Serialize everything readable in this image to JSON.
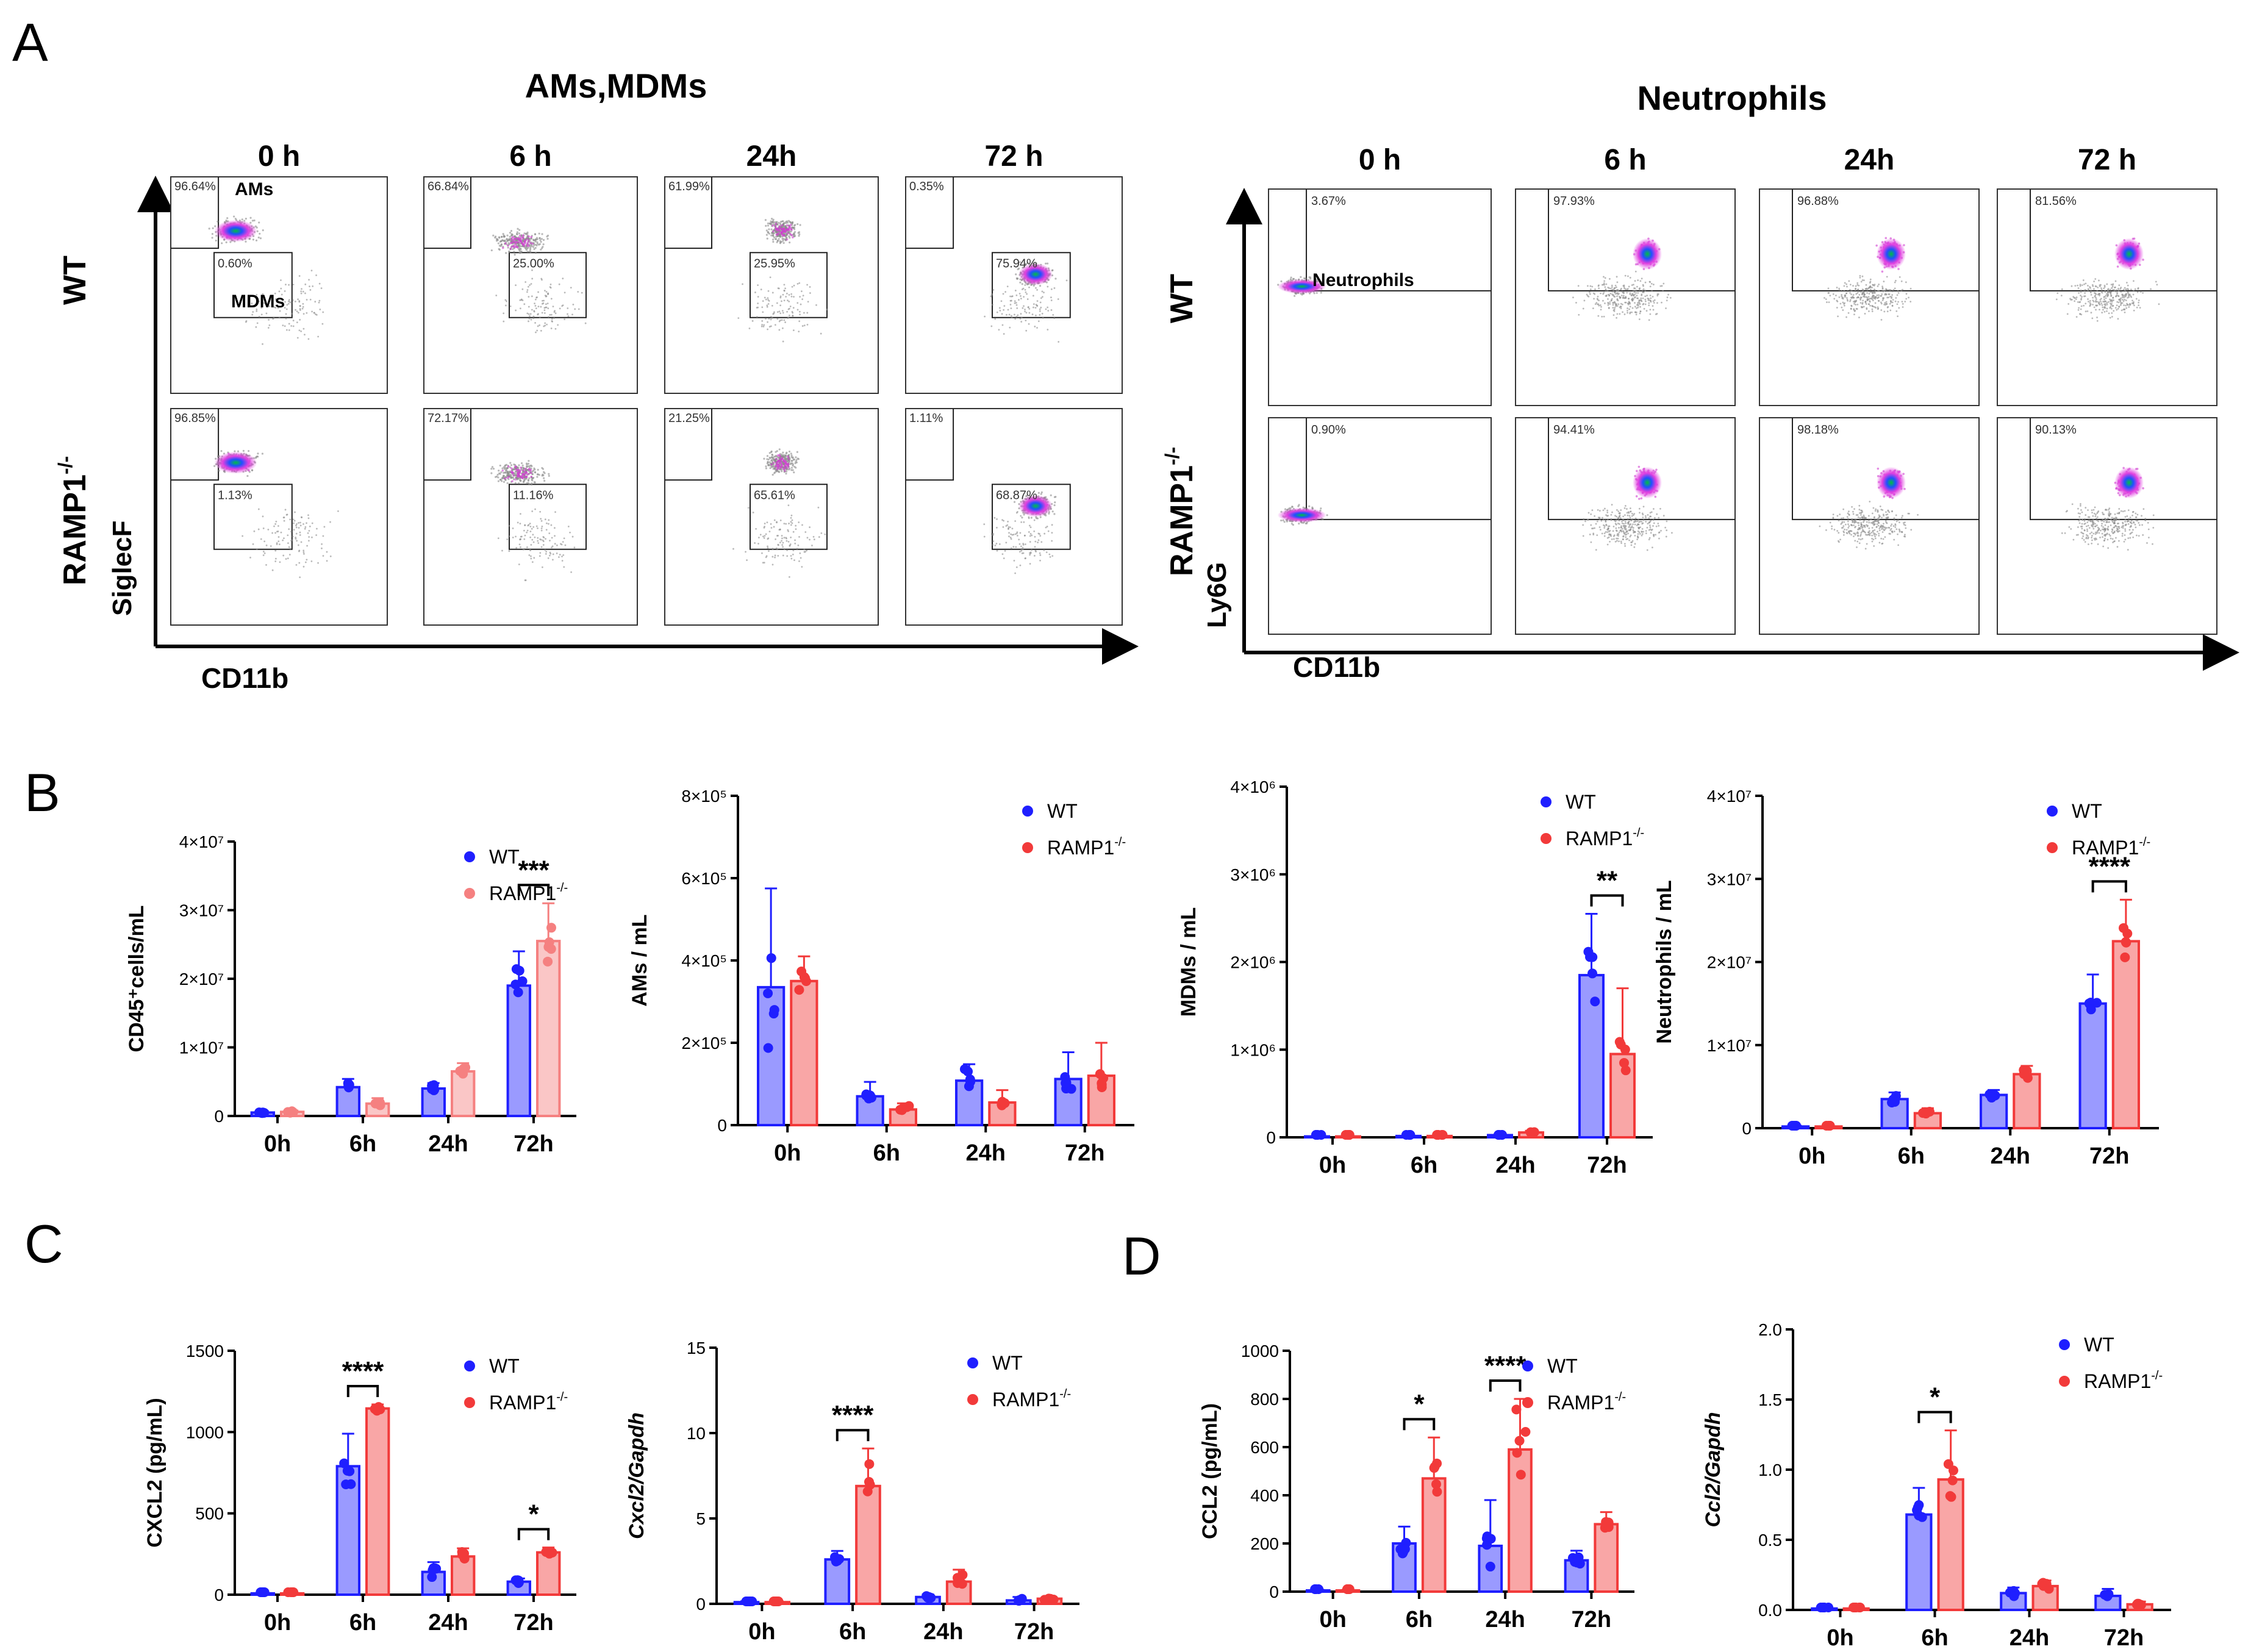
{
  "panel_labels": {
    "A": "A",
    "B": "B",
    "C": "C",
    "D": "D"
  },
  "flow": {
    "ams_title": "AMs,MDMs",
    "neut_title": "Neutrophils",
    "timepoints": [
      "0 h",
      "6 h",
      "24h",
      "72 h"
    ],
    "row_wt": "WT",
    "row_ko": "RAMP1",
    "row_ko_sup": "-/-",
    "ams_xaxis": "CD11b",
    "ams_yaxis": "SiglecF",
    "neut_xaxis": "CD11b",
    "neut_yaxis": "Ly6G",
    "gate_ams": "AMs",
    "gate_mdms": "MDMs",
    "gate_neut": "Neutrophils",
    "ams_wt_pcts": [
      [
        "96.64%",
        "0.60%"
      ],
      [
        "66.84%",
        "25.00%"
      ],
      [
        "61.99%",
        "25.95%"
      ],
      [
        "0.35%",
        "75.94%"
      ]
    ],
    "ams_ko_pcts": [
      [
        "96.85%",
        "1.13%"
      ],
      [
        "72.17%",
        "11.16%"
      ],
      [
        "21.25%",
        "65.61%"
      ],
      [
        "1.11%",
        "68.87%"
      ]
    ],
    "neut_wt_pcts": [
      "3.67%",
      "97.93%",
      "96.88%",
      "81.56%"
    ],
    "neut_ko_pcts": [
      "0.90%",
      "94.41%",
      "98.18%",
      "90.13%"
    ]
  },
  "colors": {
    "wt": "#1f1fff",
    "ko": "#f23a3a",
    "ko_light": "#f58080",
    "axis": "#000000",
    "gray": "#8a8a8a"
  },
  "legend": {
    "wt": "WT",
    "ko": "RAMP1",
    "ko_sup": "-/-"
  },
  "chart_data": [
    {
      "id": "B1",
      "type": "bar",
      "title": "",
      "ylabel": "CD45⁺cells/mL",
      "categories": [
        "0h",
        "6h",
        "24h",
        "72h"
      ],
      "ylim": [
        0,
        40000000
      ],
      "ytick_labels": [
        "0",
        "1×10⁷",
        "2×10⁷",
        "3×10⁷",
        "4×10⁷"
      ],
      "series": [
        {
          "name": "WT",
          "values": [
            500000,
            4200000,
            4000000,
            19000000
          ],
          "err": [
            200000,
            1200000,
            800000,
            5000000
          ]
        },
        {
          "name": "RAMP1-/-",
          "values": [
            600000,
            1800000,
            6500000,
            25500000
          ],
          "err": [
            200000,
            800000,
            1200000,
            5500000
          ]
        }
      ],
      "significance": [
        {
          "category": "72h",
          "label": "***"
        }
      ]
    },
    {
      "id": "B2",
      "type": "bar",
      "title": "",
      "ylabel": "AMs / mL",
      "categories": [
        "0h",
        "6h",
        "24h",
        "72h"
      ],
      "ylim": [
        0,
        800000
      ],
      "ytick_labels": [
        "0",
        "2×10⁵",
        "4×10⁵",
        "6×10⁵",
        "8×10⁵"
      ],
      "series": [
        {
          "name": "WT",
          "values": [
            335000,
            70000,
            108000,
            112000
          ],
          "err": [
            240000,
            35000,
            40000,
            65000
          ]
        },
        {
          "name": "RAMP1-/-",
          "values": [
            350000,
            38000,
            55000,
            120000
          ],
          "err": [
            60000,
            15000,
            30000,
            80000
          ]
        }
      ],
      "significance": []
    },
    {
      "id": "B3",
      "type": "bar",
      "title": "",
      "ylabel": "MDMs / mL",
      "categories": [
        "0h",
        "6h",
        "24h",
        "72h"
      ],
      "ylim": [
        0,
        4000000
      ],
      "ytick_labels": [
        "0",
        "1×10⁶",
        "2×10⁶",
        "3×10⁶",
        "4×10⁶"
      ],
      "series": [
        {
          "name": "WT",
          "values": [
            10000,
            15000,
            25000,
            1850000
          ],
          "err": [
            5000,
            5000,
            10000,
            700000
          ]
        },
        {
          "name": "RAMP1-/-",
          "values": [
            10000,
            15000,
            55000,
            950000
          ],
          "err": [
            5000,
            5000,
            20000,
            750000
          ]
        }
      ],
      "significance": [
        {
          "category": "72h",
          "label": "**"
        }
      ]
    },
    {
      "id": "B4",
      "type": "bar",
      "title": "",
      "ylabel": "Neutrophils / mL",
      "categories": [
        "0h",
        "6h",
        "24h",
        "72h"
      ],
      "ylim": [
        0,
        40000000
      ],
      "ytick_labels": [
        "0",
        "1×10⁷",
        "2×10⁷",
        "3×10⁷",
        "4×10⁷"
      ],
      "series": [
        {
          "name": "WT",
          "values": [
            200000,
            3500000,
            4000000,
            15000000
          ],
          "err": [
            100000,
            800000,
            600000,
            3500000
          ]
        },
        {
          "name": "RAMP1-/-",
          "values": [
            200000,
            1800000,
            6500000,
            22500000
          ],
          "err": [
            100000,
            600000,
            1000000,
            5000000
          ]
        }
      ],
      "significance": [
        {
          "category": "72h",
          "label": "****"
        }
      ]
    },
    {
      "id": "C1",
      "type": "bar",
      "title": "",
      "ylabel": "CXCL2 (pg/mL)",
      "categories": [
        "0h",
        "6h",
        "24h",
        "72h"
      ],
      "ylim": [
        0,
        1500
      ],
      "ytick_labels": [
        "0",
        "500",
        "1000",
        "1500"
      ],
      "series": [
        {
          "name": "WT",
          "values": [
            8,
            790,
            140,
            80
          ],
          "err": [
            5,
            200,
            60,
            20
          ]
        },
        {
          "name": "RAMP1-/-",
          "values": [
            8,
            1145,
            235,
            260
          ],
          "err": [
            5,
            25,
            50,
            30
          ]
        }
      ],
      "significance": [
        {
          "category": "6h",
          "label": "****"
        },
        {
          "category": "72h",
          "label": "*"
        }
      ]
    },
    {
      "id": "C2",
      "type": "bar",
      "title": "",
      "ylabel": "Cxcl2/Gapdh",
      "categories": [
        "0h",
        "6h",
        "24h",
        "72h"
      ],
      "ylim": [
        0,
        15
      ],
      "ytick_labels": [
        "0",
        "5",
        "10",
        "15"
      ],
      "series": [
        {
          "name": "WT",
          "values": [
            0.1,
            2.6,
            0.4,
            0.2
          ],
          "err": [
            0.05,
            0.5,
            0.15,
            0.2
          ]
        },
        {
          "name": "RAMP1-/-",
          "values": [
            0.1,
            6.9,
            1.3,
            0.3
          ],
          "err": [
            0.05,
            2.2,
            0.7,
            0.15
          ]
        }
      ],
      "significance": [
        {
          "category": "6h",
          "label": "****"
        }
      ]
    },
    {
      "id": "D1",
      "type": "bar",
      "title": "",
      "ylabel": "CCL2 (pg/mL)",
      "categories": [
        "0h",
        "6h",
        "24h",
        "72h"
      ],
      "ylim": [
        0,
        1000
      ],
      "ytick_labels": [
        "0",
        "200",
        "400",
        "600",
        "800",
        "1000"
      ],
      "series": [
        {
          "name": "WT",
          "values": [
            5,
            200,
            190,
            130
          ],
          "err": [
            3,
            70,
            190,
            40
          ]
        },
        {
          "name": "RAMP1-/-",
          "values": [
            5,
            470,
            590,
            280
          ],
          "err": [
            3,
            170,
            210,
            50
          ]
        }
      ],
      "significance": [
        {
          "category": "6h",
          "label": "*"
        },
        {
          "category": "24h",
          "label": "****"
        }
      ]
    },
    {
      "id": "D2",
      "type": "bar",
      "title": "",
      "ylabel": "Ccl2/Gapdh",
      "categories": [
        "0h",
        "6h",
        "24h",
        "72h"
      ],
      "ylim": [
        0,
        2.0
      ],
      "ytick_labels": [
        "0.0",
        "0.5",
        "1.0",
        "1.5",
        "2.0"
      ],
      "series": [
        {
          "name": "WT",
          "values": [
            0.01,
            0.68,
            0.12,
            0.1
          ],
          "err": [
            0.005,
            0.19,
            0.04,
            0.05
          ]
        },
        {
          "name": "RAMP1-/-",
          "values": [
            0.01,
            0.93,
            0.17,
            0.04
          ],
          "err": [
            0.005,
            0.35,
            0.04,
            0.02
          ]
        }
      ],
      "significance": [
        {
          "category": "6h",
          "label": "*"
        }
      ]
    }
  ]
}
